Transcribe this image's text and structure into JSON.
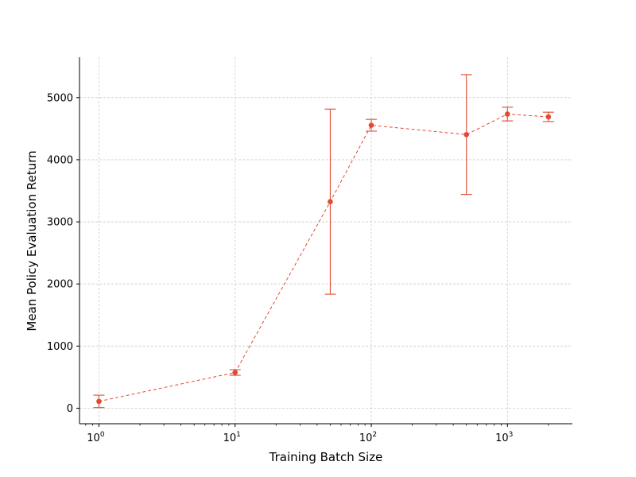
{
  "chart_data": {
    "type": "line",
    "title": "",
    "xlabel": "Training Batch Size",
    "ylabel": "Mean Policy Evaluation Return",
    "x_scale": "log",
    "xlim": [
      0.72,
      3000
    ],
    "ylim": [
      -250,
      5650
    ],
    "grid": true,
    "x_ticks": [
      {
        "value": 1,
        "base": "10",
        "exp": "0"
      },
      {
        "value": 10,
        "base": "10",
        "exp": "1"
      },
      {
        "value": 100,
        "base": "10",
        "exp": "2"
      },
      {
        "value": 1000,
        "base": "10",
        "exp": "3"
      }
    ],
    "y_ticks": [
      0,
      1000,
      2000,
      3000,
      4000,
      5000
    ],
    "series": [
      {
        "color": "#e34a33",
        "x": [
          1,
          10,
          50,
          100,
          500,
          1000,
          2000
        ],
        "y": [
          110,
          575,
          3325,
          4555,
          4405,
          4735,
          4690
        ],
        "err": [
          100,
          45,
          1490,
          95,
          965,
          110,
          75
        ]
      }
    ]
  }
}
